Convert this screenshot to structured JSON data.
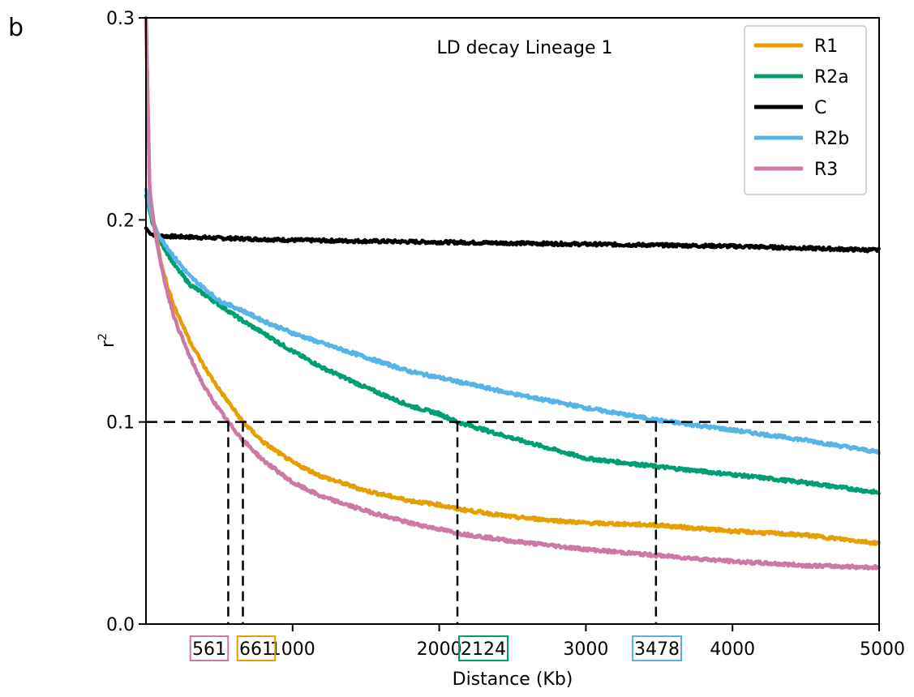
{
  "panel_label": "b",
  "chart_data": {
    "type": "line",
    "title": "LD decay Lineage 1",
    "xlabel": "Distance (Kb)",
    "ylabel": "r",
    "ylabel_superscript": "2",
    "xlim": [
      0,
      5000
    ],
    "ylim": [
      0,
      0.3
    ],
    "x_ticks": [
      1000,
      2000,
      3000,
      4000,
      5000
    ],
    "y_ticks": [
      "0.0",
      "0.1",
      "0.2",
      "0.3"
    ],
    "threshold": 0.1,
    "grid": false,
    "legend_position": "top-right",
    "series": [
      {
        "name": "R1",
        "color": "#E69F00",
        "x": [
          0,
          25,
          50,
          100,
          150,
          200,
          300,
          400,
          500,
          600,
          661,
          800,
          1000,
          1200,
          1500,
          1800,
          2000,
          2124,
          2500,
          3000,
          3478,
          4000,
          4500,
          5000
        ],
        "y": [
          0.3,
          0.215,
          0.2,
          0.18,
          0.166,
          0.156,
          0.14,
          0.127,
          0.116,
          0.106,
          0.1,
          0.09,
          0.08,
          0.073,
          0.066,
          0.061,
          0.059,
          0.057,
          0.053,
          0.05,
          0.049,
          0.046,
          0.044,
          0.04
        ]
      },
      {
        "name": "R2a",
        "color": "#009E73",
        "x": [
          0,
          50,
          100,
          200,
          300,
          400,
          500,
          661,
          800,
          1000,
          1200,
          1500,
          1800,
          2000,
          2124,
          2500,
          3000,
          3478,
          4000,
          4500,
          5000
        ],
        "y": [
          0.212,
          0.197,
          0.189,
          0.177,
          0.168,
          0.163,
          0.158,
          0.15,
          0.144,
          0.135,
          0.127,
          0.117,
          0.108,
          0.104,
          0.1,
          0.092,
          0.082,
          0.078,
          0.074,
          0.07,
          0.065
        ]
      },
      {
        "name": "C",
        "color": "#000000",
        "x": [
          0,
          30,
          100,
          500,
          1000,
          2000,
          3000,
          4000,
          5000
        ],
        "y": [
          0.196,
          0.193,
          0.192,
          0.191,
          0.19,
          0.189,
          0.188,
          0.187,
          0.185
        ]
      },
      {
        "name": "R2b",
        "color": "#56B4E9",
        "x": [
          0,
          50,
          100,
          200,
          300,
          400,
          500,
          661,
          800,
          1000,
          1200,
          1500,
          1800,
          2000,
          2124,
          2500,
          3000,
          3478,
          4000,
          4500,
          5000
        ],
        "y": [
          0.215,
          0.198,
          0.191,
          0.181,
          0.172,
          0.166,
          0.16,
          0.155,
          0.15,
          0.144,
          0.139,
          0.132,
          0.125,
          0.122,
          0.12,
          0.114,
          0.107,
          0.101,
          0.096,
          0.091,
          0.085
        ]
      },
      {
        "name": "R3",
        "color": "#CC79A7",
        "x": [
          0,
          25,
          50,
          100,
          150,
          200,
          300,
          400,
          500,
          561,
          661,
          800,
          1000,
          1200,
          1500,
          1800,
          2000,
          2124,
          2500,
          3000,
          3478,
          4000,
          4500,
          5000
        ],
        "y": [
          0.3,
          0.215,
          0.2,
          0.178,
          0.163,
          0.15,
          0.132,
          0.117,
          0.106,
          0.1,
          0.091,
          0.081,
          0.07,
          0.063,
          0.056,
          0.05,
          0.047,
          0.045,
          0.041,
          0.037,
          0.034,
          0.031,
          0.029,
          0.028
        ]
      }
    ],
    "decay_markers": [
      {
        "value": 561,
        "label": "561",
        "color": "#CC79A7"
      },
      {
        "value": 661,
        "label": "661",
        "color": "#E69F00"
      },
      {
        "value": 2124,
        "label": "2124",
        "color": "#009E73"
      },
      {
        "value": 3478,
        "label": "3478",
        "color": "#56B4E9"
      }
    ]
  }
}
